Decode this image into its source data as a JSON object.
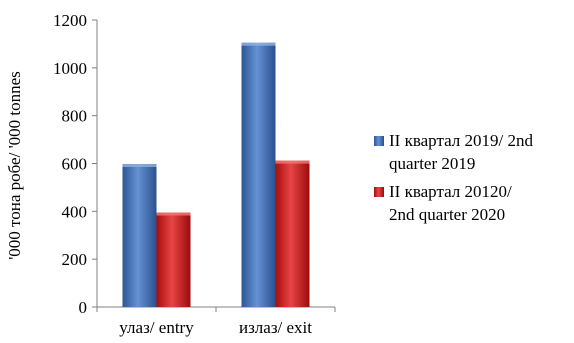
{
  "chart_data": {
    "type": "bar",
    "title": "",
    "xlabel": "",
    "ylabel": "'000 тона робе/ '000 tonnes",
    "ylim": [
      0,
      1200
    ],
    "yticks": [
      0,
      200,
      400,
      600,
      800,
      1000,
      1200
    ],
    "categories": [
      "улаз/ entry",
      "излаз/ exit"
    ],
    "series": [
      {
        "name": "II квартал 2019/ 2nd quarter 2019",
        "name_lines": [
          "II квартал 2019/ 2nd",
          "quarter 2019"
        ],
        "color": "#3a73c8",
        "values": [
          598,
          1105
        ]
      },
      {
        "name": "II квартал 20120/ 2nd quarter 2020",
        "name_lines": [
          "II квартал 20120/",
          "2nd quarter 2020"
        ],
        "color": "#e01010",
        "values": [
          395,
          612
        ]
      }
    ],
    "grid": false,
    "legend_position": "right"
  }
}
